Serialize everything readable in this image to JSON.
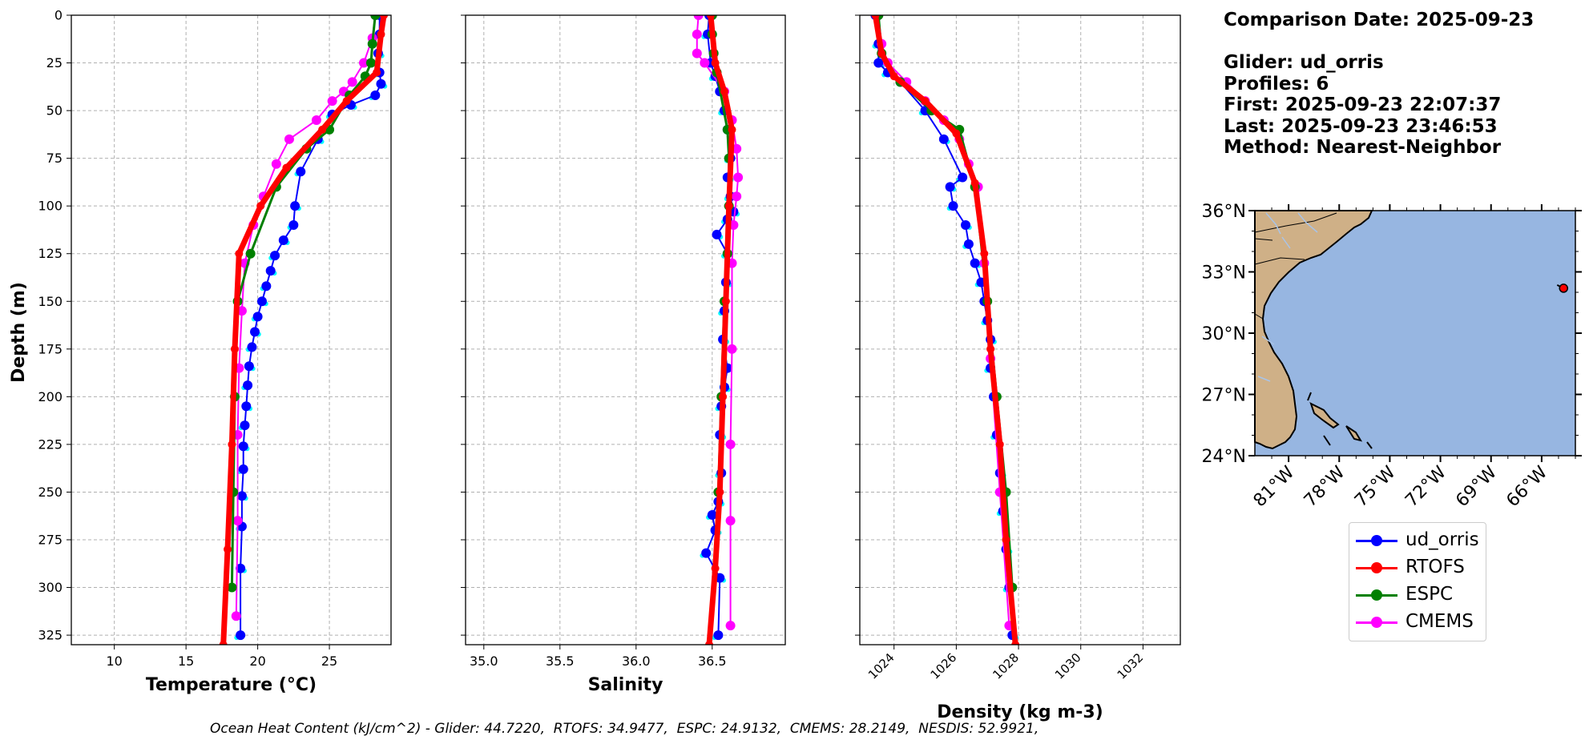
{
  "chart_data": [
    {
      "type": "line",
      "xlabel": "Temperature (°C)",
      "ylabel": "Depth (m)",
      "xlim": [
        7,
        29.3
      ],
      "ylim": [
        330,
        0
      ],
      "xticks": [
        10,
        15,
        20,
        25
      ],
      "yticks": [
        0,
        25,
        50,
        75,
        100,
        125,
        150,
        175,
        200,
        225,
        250,
        275,
        300,
        325
      ],
      "grid": true,
      "series": [
        {
          "name": "ud_orris",
          "color": "#0000ff",
          "markers": true,
          "scatter_color": "#00ffff",
          "x": [
            28.5,
            28.5,
            28.4,
            28.5,
            28.6,
            28.2,
            26.5,
            25.2,
            24.2,
            23.0,
            22.6,
            22.5,
            21.8,
            21.2,
            20.9,
            20.6,
            20.3,
            20.0,
            19.8,
            19.6,
            19.4,
            19.3,
            19.2,
            19.1,
            19.0,
            19.0,
            18.9,
            18.9,
            18.8,
            18.8
          ],
          "y": [
            0,
            10,
            20,
            30,
            36,
            42,
            47,
            52,
            65,
            82,
            100,
            110,
            118,
            126,
            134,
            142,
            150,
            158,
            166,
            174,
            184,
            194,
            205,
            215,
            226,
            238,
            252,
            268,
            290,
            325
          ]
        },
        {
          "name": "RTOFS",
          "color": "#ff0000",
          "markers": true,
          "x": [
            28.8,
            28.6,
            28.3,
            26.2,
            24.5,
            22.0,
            20.2,
            18.7,
            18.4,
            18.2,
            17.9,
            17.6
          ],
          "y": [
            0,
            10,
            30,
            45,
            60,
            80,
            100,
            125,
            175,
            225,
            280,
            330
          ]
        },
        {
          "name": "ESPC",
          "color": "#008000",
          "markers": true,
          "x": [
            28.2,
            28.0,
            27.9,
            27.5,
            26.4,
            25.0,
            23.4,
            21.3,
            19.5,
            18.6,
            18.4,
            18.3,
            18.2
          ],
          "y": [
            0,
            15,
            25,
            32,
            42,
            60,
            70,
            90,
            125,
            150,
            200,
            250,
            300
          ]
        },
        {
          "name": "CMEMS",
          "color": "#ff00ff",
          "markers": true,
          "x": [
            28.2,
            28.0,
            27.4,
            26.6,
            26.0,
            25.2,
            24.1,
            22.2,
            21.3,
            20.4,
            19.7,
            19.1,
            18.9,
            18.7,
            18.6,
            18.6,
            18.5
          ],
          "y": [
            0,
            12,
            25,
            35,
            40,
            45,
            55,
            65,
            78,
            95,
            110,
            130,
            155,
            185,
            220,
            265,
            315
          ]
        }
      ]
    },
    {
      "type": "line",
      "xlabel": "Salinity",
      "xlim": [
        34.88,
        36.98
      ],
      "ylim": [
        330,
        0
      ],
      "xticks": [
        "35.0",
        "35.5",
        "36.0",
        "36.5"
      ],
      "yticks": [
        0,
        25,
        50,
        75,
        100,
        125,
        150,
        175,
        200,
        225,
        250,
        275,
        300,
        325
      ],
      "grid": true,
      "series": [
        {
          "name": "ud_orris",
          "color": "#0000ff",
          "markers": true,
          "scatter_color": "#00ffff",
          "x": [
            36.48,
            36.47,
            36.49,
            36.52,
            36.55,
            36.58,
            36.6,
            36.62,
            36.6,
            36.62,
            36.64,
            36.6,
            36.53,
            36.6,
            36.59,
            36.58,
            36.57,
            36.6,
            36.58,
            36.56,
            36.55,
            36.56,
            36.54,
            36.5,
            36.52,
            36.46,
            36.55,
            36.54
          ],
          "y": [
            0,
            10,
            25,
            32,
            40,
            50,
            60,
            75,
            85,
            95,
            103,
            107,
            115,
            125,
            140,
            155,
            170,
            185,
            195,
            205,
            220,
            240,
            255,
            262,
            270,
            282,
            295,
            325
          ]
        },
        {
          "name": "RTOFS",
          "color": "#ff0000",
          "markers": true,
          "x": [
            36.49,
            36.52,
            36.58,
            36.63,
            36.61,
            36.59,
            36.57,
            36.55,
            36.52,
            36.48
          ],
          "y": [
            0,
            25,
            40,
            60,
            100,
            150,
            200,
            250,
            290,
            330
          ]
        },
        {
          "name": "ESPC",
          "color": "#008000",
          "markers": true,
          "x": [
            36.5,
            36.5,
            36.51,
            36.53,
            36.6,
            36.61,
            36.61,
            36.6,
            36.58,
            36.56,
            36.54
          ],
          "y": [
            0,
            10,
            20,
            30,
            60,
            75,
            100,
            125,
            150,
            200,
            250
          ]
        },
        {
          "name": "CMEMS",
          "color": "#ff00ff",
          "markers": true,
          "x": [
            36.41,
            36.4,
            36.4,
            36.45,
            36.58,
            36.63,
            36.66,
            36.67,
            36.66,
            36.64,
            36.63,
            36.63,
            36.62,
            36.62,
            36.62
          ],
          "y": [
            0,
            10,
            20,
            25,
            40,
            55,
            70,
            85,
            95,
            110,
            130,
            175,
            225,
            265,
            320
          ]
        }
      ]
    },
    {
      "type": "line",
      "xlabel": "Density (kg m-3)",
      "xlim": [
        1022.9,
        1033.2
      ],
      "ylim": [
        330,
        0
      ],
      "xticks": [
        "1024",
        "1026",
        "1028",
        "1030",
        "1032"
      ],
      "yticks": [
        0,
        25,
        50,
        75,
        100,
        125,
        150,
        175,
        200,
        225,
        250,
        275,
        300,
        325
      ],
      "grid": true,
      "series": [
        {
          "name": "ud_orris",
          "color": "#0000ff",
          "markers": true,
          "scatter_color": "#00ffff",
          "x": [
            1023.4,
            1023.5,
            1023.5,
            1023.8,
            1024.2,
            1025.0,
            1025.6,
            1026.2,
            1025.8,
            1025.9,
            1026.3,
            1026.4,
            1026.6,
            1026.8,
            1026.9,
            1027.0,
            1027.1,
            1027.1,
            1027.2,
            1027.3,
            1027.4,
            1027.5,
            1027.6,
            1027.7,
            1027.8
          ],
          "y": [
            0,
            15,
            25,
            30,
            35,
            50,
            65,
            85,
            90,
            100,
            110,
            120,
            130,
            140,
            150,
            160,
            170,
            185,
            200,
            220,
            240,
            260,
            280,
            300,
            325
          ]
        },
        {
          "name": "RTOFS",
          "color": "#ff0000",
          "markers": true,
          "x": [
            1023.4,
            1023.6,
            1024.0,
            1025.0,
            1026.0,
            1026.6,
            1026.9,
            1027.1,
            1027.4,
            1027.6,
            1027.9
          ],
          "y": [
            0,
            20,
            32,
            45,
            62,
            88,
            125,
            175,
            225,
            275,
            330
          ]
        },
        {
          "name": "ESPC",
          "color": "#008000",
          "markers": true,
          "x": [
            1023.5,
            1023.6,
            1024.2,
            1025.2,
            1026.1,
            1026.6,
            1027.0,
            1027.3,
            1027.6,
            1027.8
          ],
          "y": [
            0,
            20,
            35,
            50,
            60,
            90,
            150,
            200,
            250,
            300
          ]
        },
        {
          "name": "CMEMS",
          "color": "#ff00ff",
          "markers": true,
          "x": [
            1023.5,
            1023.6,
            1023.8,
            1024.4,
            1025.0,
            1025.6,
            1026.1,
            1026.4,
            1026.7,
            1026.9,
            1027.1,
            1027.4,
            1027.7
          ],
          "y": [
            0,
            15,
            25,
            35,
            45,
            55,
            65,
            78,
            90,
            130,
            180,
            250,
            320
          ]
        }
      ]
    }
  ],
  "map": {
    "lat_labels": [
      "36°N",
      "33°N",
      "30°N",
      "27°N",
      "24°N"
    ],
    "lon_labels": [
      "81°W",
      "78°W",
      "75°W",
      "72°W",
      "69°W",
      "66°W"
    ],
    "ocean_color": "#97b6e1",
    "land_color": "#cfb087",
    "glider_position": {
      "lon": -64.7,
      "lat": 32.2
    }
  },
  "info": {
    "comparison_date": "Comparison Date: 2025-09-23",
    "glider": "Glider: ud_orris",
    "profiles": "Profiles: 6",
    "first": "First: 2025-09-23 22:07:37",
    "last": "Last: 2025-09-23 23:46:53",
    "method": "Method: Nearest-Neighbor"
  },
  "legend": [
    {
      "label": "ud_orris",
      "color": "#0000ff"
    },
    {
      "label": "RTOFS",
      "color": "#ff0000"
    },
    {
      "label": "ESPC",
      "color": "#008000"
    },
    {
      "label": "CMEMS",
      "color": "#ff00ff"
    }
  ],
  "footer": "Ocean Heat Content (kJ/cm^2) - Glider: 44.7220,  RTOFS: 34.9477,  ESPC: 24.9132,  CMEMS: 28.2149,  NESDIS: 52.9921,"
}
